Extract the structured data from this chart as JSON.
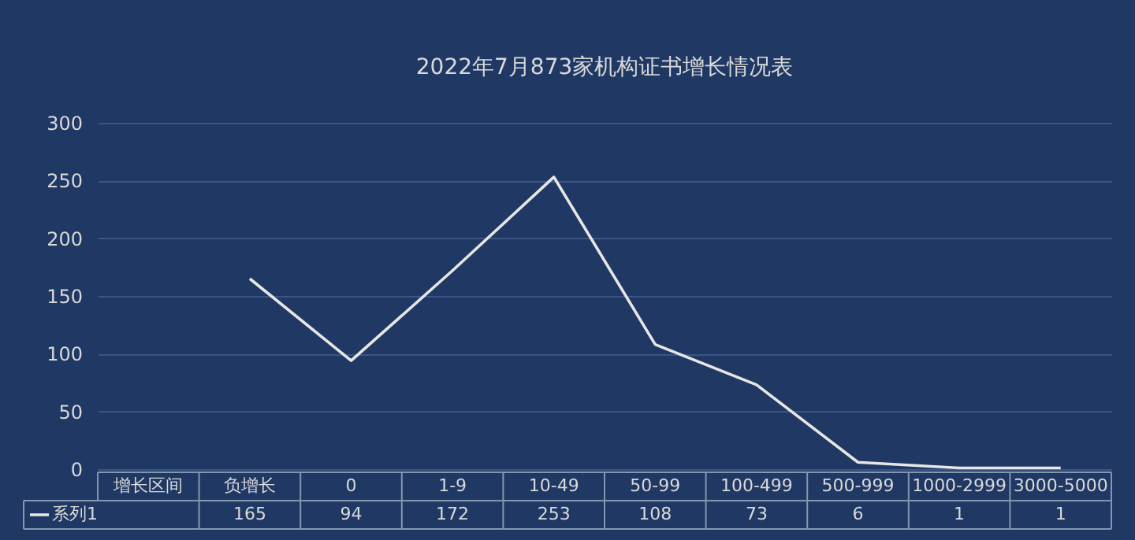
{
  "chart_data": {
    "type": "line",
    "title": "2022年7月873家机构证书增长情况表",
    "xlabel": "增长区间",
    "categories": [
      "负增长",
      "0",
      "1-9",
      "10-49",
      "50-99",
      "100-499",
      "500-999",
      "1000-2999",
      "3000-5000"
    ],
    "series": [
      {
        "name": "系列1",
        "color": "#e7e6e6",
        "values": [
          165,
          94,
          172,
          253,
          108,
          73,
          6,
          1,
          1
        ]
      }
    ],
    "ylim": [
      0,
      300
    ],
    "yticks": [
      0,
      50,
      100,
      150,
      200,
      250,
      300
    ],
    "grid": "y",
    "legend": "bottom",
    "data_labels": true
  }
}
